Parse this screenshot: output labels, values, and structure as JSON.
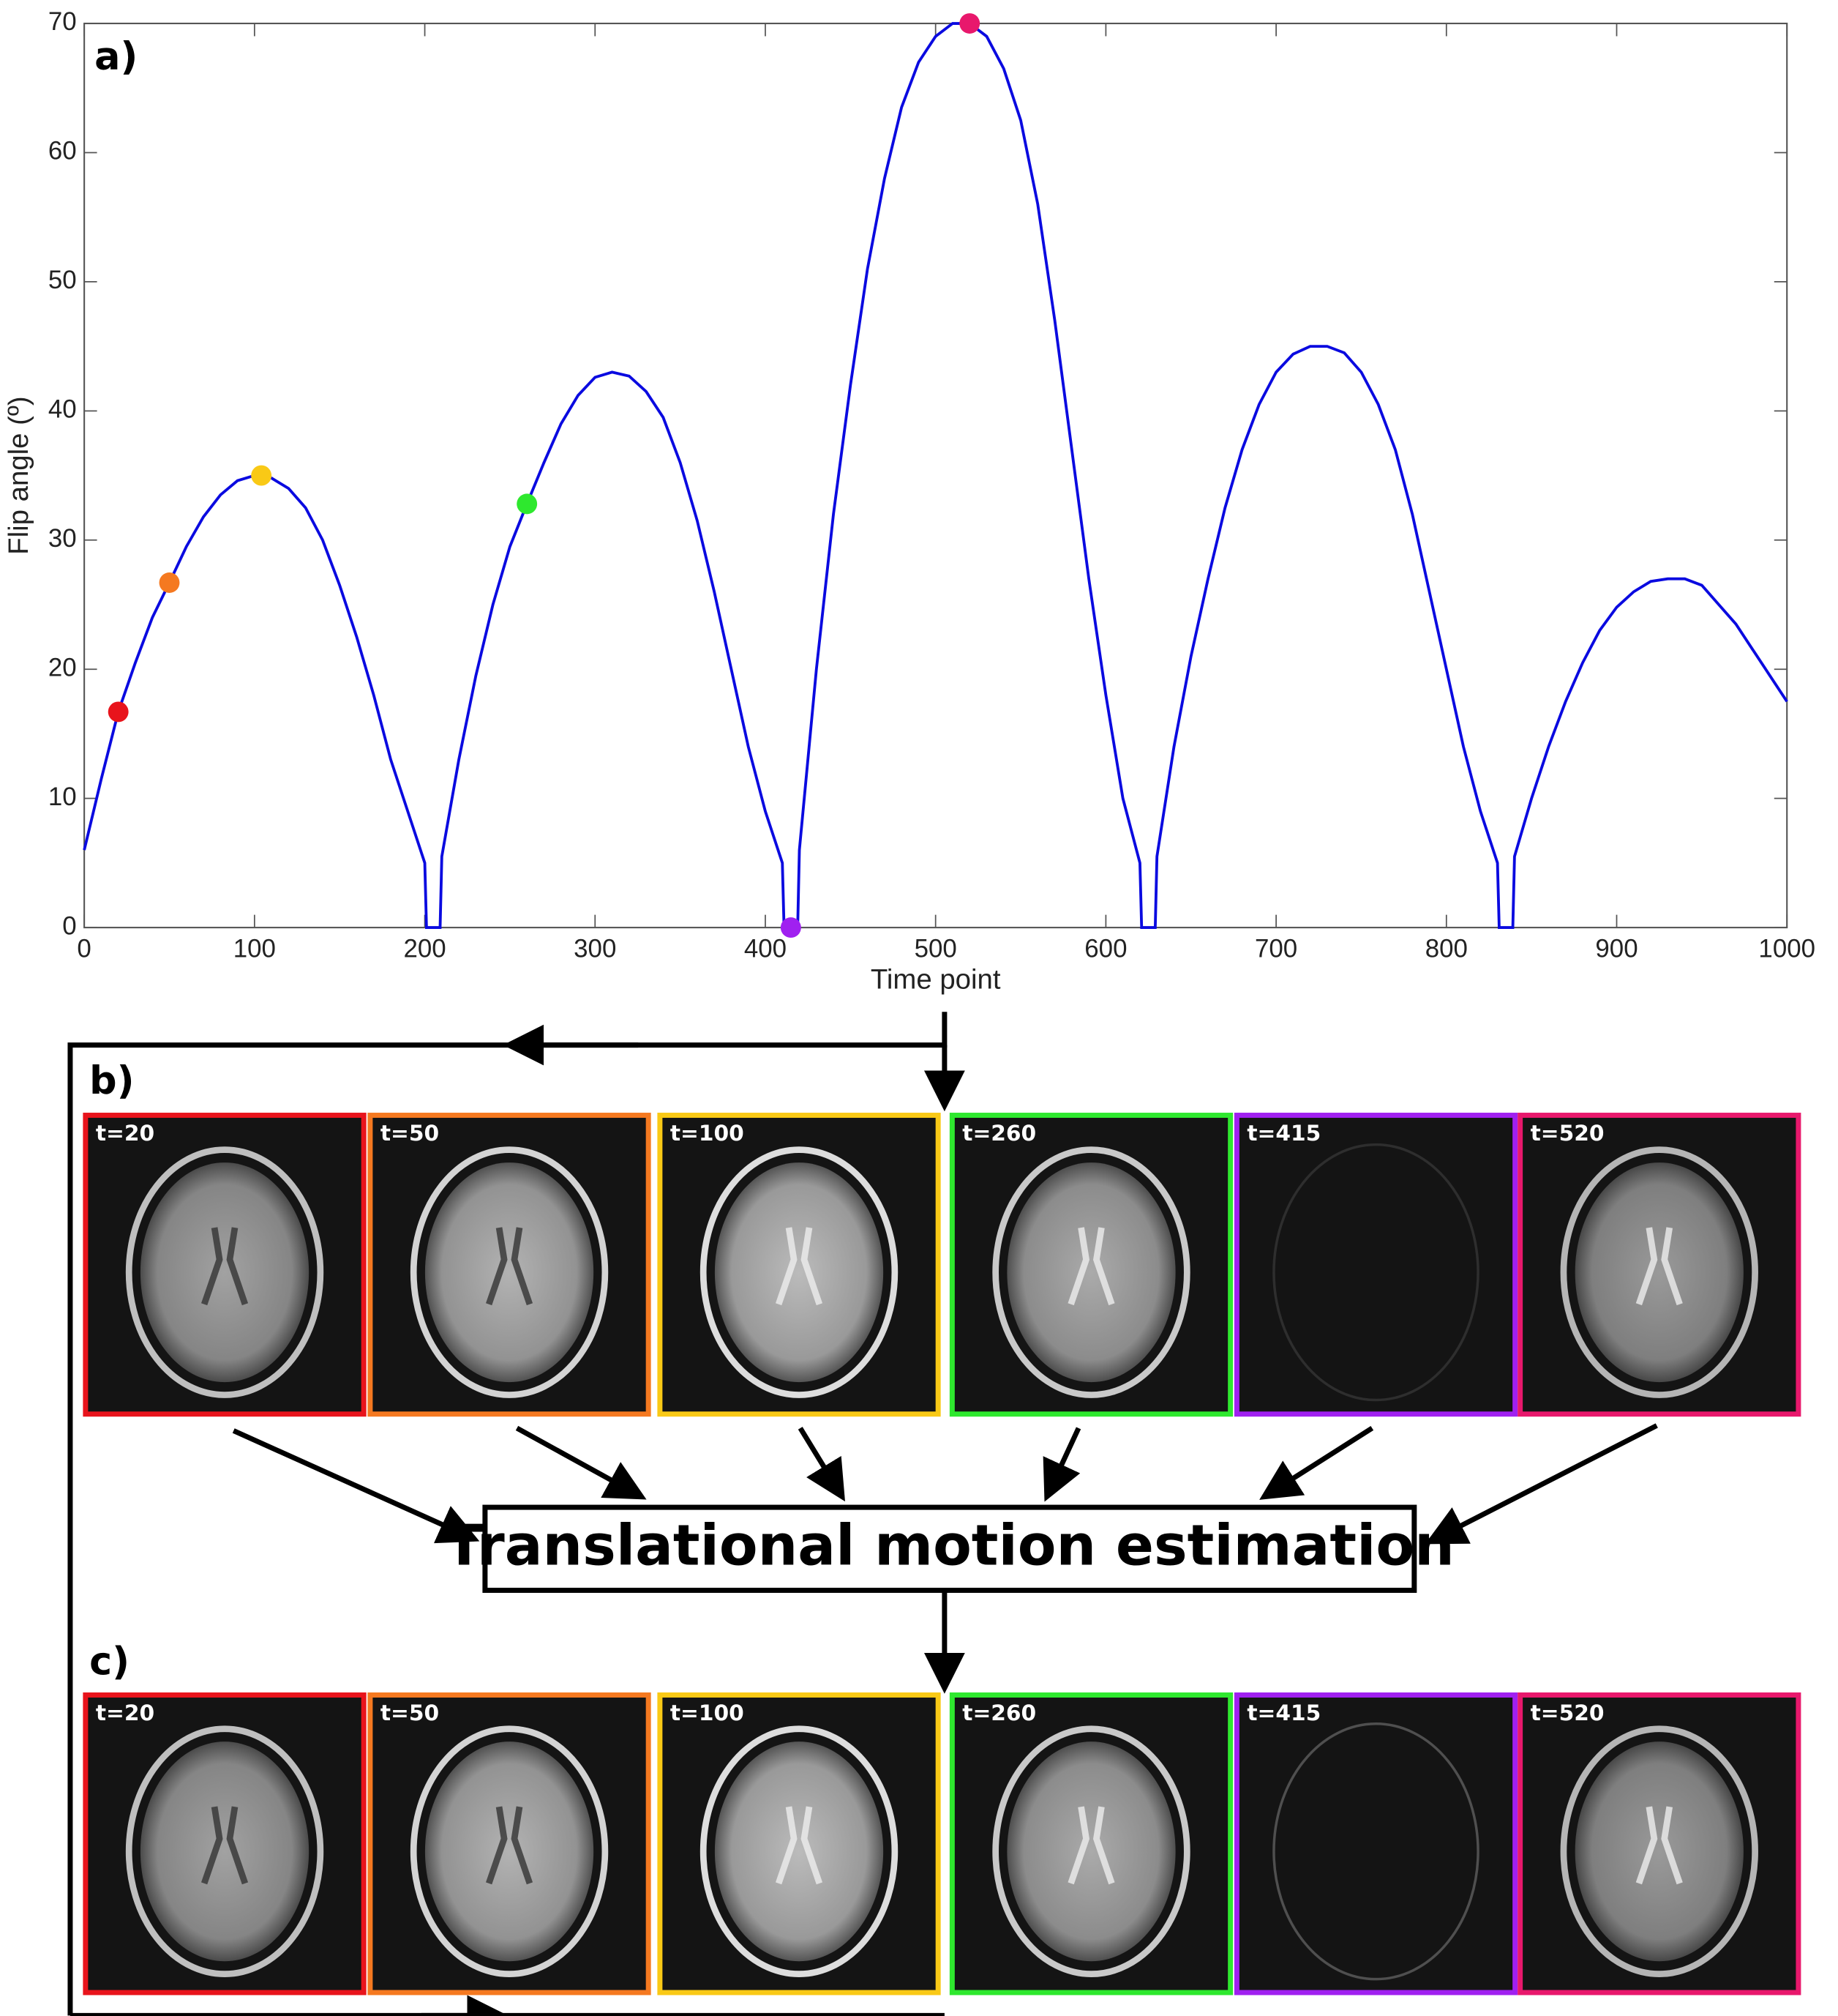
{
  "chart_data": {
    "type": "line",
    "panel_label": "a)",
    "x_label": "Time point",
    "y_label": "Flip angle (º)",
    "xlim": [
      0,
      1000
    ],
    "xticks": [
      0,
      100,
      200,
      300,
      400,
      500,
      600,
      700,
      800,
      900,
      1000
    ],
    "ylim": [
      0,
      70
    ],
    "yticks": [
      0,
      10,
      20,
      30,
      40,
      50,
      60,
      70
    ],
    "color": "#0a0ae0",
    "x": [
      0,
      10,
      20,
      30,
      40,
      50,
      60,
      70,
      80,
      90,
      100,
      110,
      120,
      130,
      140,
      150,
      160,
      170,
      180,
      190,
      200,
      201,
      209,
      210,
      220,
      230,
      240,
      250,
      260,
      270,
      280,
      290,
      300,
      310,
      320,
      330,
      340,
      350,
      360,
      370,
      380,
      390,
      400,
      410,
      411,
      419,
      420,
      430,
      440,
      450,
      460,
      470,
      480,
      490,
      500,
      510,
      520,
      530,
      540,
      550,
      560,
      570,
      580,
      590,
      600,
      610,
      620,
      621,
      629,
      630,
      640,
      650,
      660,
      670,
      680,
      690,
      700,
      710,
      720,
      730,
      740,
      750,
      760,
      770,
      780,
      790,
      800,
      810,
      820,
      830,
      831,
      839,
      840,
      850,
      860,
      870,
      880,
      890,
      900,
      910,
      920,
      930,
      940,
      950,
      960,
      970,
      980,
      990,
      1000
    ],
    "values": [
      6,
      11.5,
      16.7,
      20.5,
      24,
      26.7,
      29.5,
      31.8,
      33.5,
      34.6,
      35,
      34.8,
      34,
      32.5,
      30,
      26.5,
      22.5,
      18,
      13,
      9,
      5,
      0,
      0,
      5.5,
      13,
      19.5,
      25,
      29.5,
      32.8,
      36,
      39,
      41.2,
      42.6,
      43,
      42.7,
      41.5,
      39.5,
      36,
      31.5,
      26,
      20,
      14,
      9,
      5,
      0,
      0,
      6,
      20,
      32,
      42,
      51,
      58,
      63.5,
      67,
      69,
      70,
      70,
      69,
      66.5,
      62.5,
      56,
      47,
      37,
      27,
      18,
      10,
      5,
      0,
      0,
      5.5,
      14,
      21,
      27,
      32.5,
      37,
      40.5,
      43,
      44.4,
      45,
      45,
      44.5,
      43,
      40.5,
      37,
      32,
      26,
      20,
      14,
      9,
      5,
      0,
      0,
      5.5,
      10,
      14,
      17.5,
      20.5,
      23,
      24.8,
      26,
      26.8,
      27,
      27,
      26.5,
      25,
      23.5,
      21.5,
      19.5,
      17.5
    ],
    "markers": {
      "x": [
        20,
        50,
        104,
        260,
        415,
        520
      ],
      "values": [
        16.7,
        26.7,
        35,
        32.8,
        0,
        70
      ],
      "colors": [
        "#e8141c",
        "#f57920",
        "#f9c916",
        "#2ee82e",
        "#a020f0",
        "#e8186c"
      ]
    }
  },
  "diagram": {
    "panel_b": "b)",
    "panel_c": "c)",
    "tiles": [
      "t=20",
      "t=50",
      "t=100",
      "t=260",
      "t=415",
      "t=520"
    ],
    "box": "Translational motion estimation"
  }
}
